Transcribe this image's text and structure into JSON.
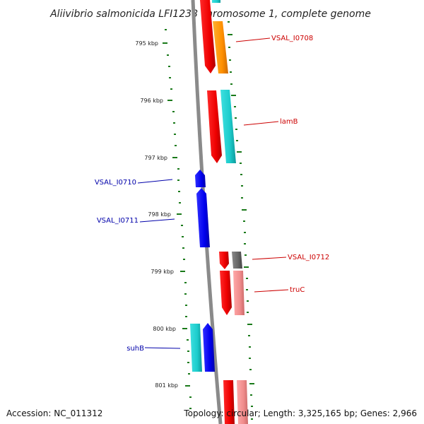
{
  "title": "Aliivibrio salmonicida LFI1238 chromosome 1, complete genome",
  "footer": {
    "accession": "Accession: NC_011312",
    "topology": "Topology: circular; Length: 3,325,165 bp; Genes: 2,966"
  },
  "kbp_labels": [
    "795 kbp",
    "796 kbp",
    "797 kbp",
    "798 kbp",
    "799 kbp",
    "800 kbp",
    "801 kbp"
  ],
  "gene_labels": {
    "VSAL_I0708": "VSAL_I0708",
    "lamB": "lamB",
    "VSAL_I0710": "VSAL_I0710",
    "VSAL_I0711": "VSAL_I0711",
    "VSAL_I0712": "VSAL_I0712",
    "truC": "truC",
    "suhB": "suhB"
  },
  "colors": {
    "forward_label": "#cc0000",
    "reverse_label": "#0000aa",
    "tick": "#1a7a1a",
    "backbone": "#8a8a8a"
  },
  "icons": [
    "gene-arrow-icon"
  ]
}
